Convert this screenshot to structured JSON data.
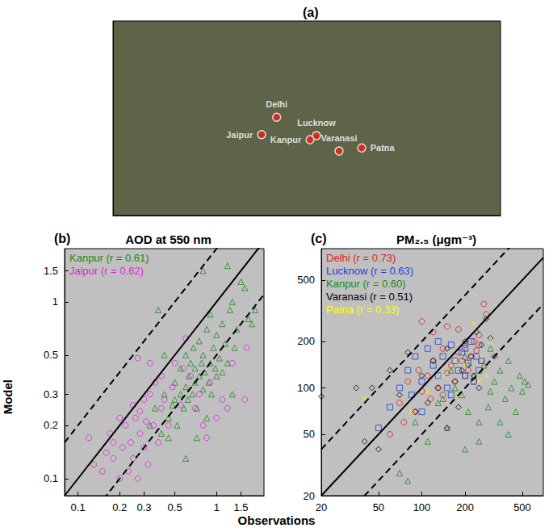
{
  "xlabel": "Observations",
  "ylabel": "Model",
  "chart_data": [
    {
      "type": "map",
      "panel": "(a)",
      "tick_labels": false,
      "color": "#e8201a",
      "xlim": [
        62,
        98
      ],
      "ylim": [
        19,
        38
      ],
      "labels": [
        "Delhi",
        "Jaipur",
        "Lucknow",
        "Kanpur",
        "Varanasi",
        "Patna"
      ],
      "x": [
        77.2,
        75.8,
        80.9,
        80.3,
        83.0,
        85.1
      ],
      "values": [
        28.6,
        26.9,
        26.8,
        26.4,
        25.3,
        25.6
      ]
    },
    {
      "type": "scatter",
      "panel": "(b)",
      "title": "AOD at 550 nm",
      "log": true,
      "legend": "upper left",
      "xlim": [
        0.08,
        2.2
      ],
      "ylim": [
        0.08,
        2.0
      ],
      "xticks": [
        0.1,
        0.2,
        0.3,
        0.5,
        1,
        1.5
      ],
      "yticks": [
        0.1,
        0.2,
        0.3,
        0.5,
        1,
        1.5
      ],
      "reference_lines": [
        {
          "ratio": 1,
          "line_style": "solid"
        },
        {
          "ratio": 2,
          "line_style": "dashed"
        },
        {
          "ratio": 0.5,
          "line_style": "dashed"
        }
      ],
      "series": [
        {
          "name": "Kanpur (r = 0.61)",
          "color": "#1a8a1a",
          "marker": "triangle",
          "x": [
            0.33,
            0.36,
            0.4,
            0.42,
            0.45,
            0.48,
            0.5,
            0.5,
            0.52,
            0.55,
            0.55,
            0.58,
            0.6,
            0.6,
            0.62,
            0.63,
            0.65,
            0.67,
            0.68,
            0.7,
            0.7,
            0.72,
            0.75,
            0.75,
            0.78,
            0.8,
            0.8,
            0.82,
            0.85,
            0.88,
            0.9,
            0.9,
            0.92,
            0.95,
            0.98,
            1.0,
            1.0,
            1.05,
            1.1,
            1.1,
            1.15,
            1.2,
            1.25,
            1.3,
            1.35,
            1.4,
            1.5,
            1.6,
            1.7,
            1.8,
            1.9,
            0.38,
            0.42,
            0.8,
            1.2,
            0.6,
            0.72,
            0.85,
            0.45,
            1.3
          ],
          "values": [
            0.2,
            0.25,
            0.18,
            0.3,
            0.22,
            0.26,
            0.28,
            0.35,
            0.2,
            0.3,
            0.42,
            0.25,
            0.33,
            0.5,
            0.28,
            0.38,
            0.45,
            0.3,
            0.55,
            0.35,
            0.42,
            0.25,
            0.38,
            0.6,
            0.45,
            0.32,
            0.5,
            0.4,
            0.7,
            0.35,
            0.45,
            0.85,
            0.3,
            0.55,
            0.42,
            0.65,
            0.38,
            0.48,
            0.75,
            0.4,
            0.58,
            0.45,
            0.9,
            1.0,
            0.55,
            0.7,
            1.3,
            1.2,
            0.8,
            0.75,
            0.9,
            0.9,
            0.5,
            1.5,
            1.6,
            0.13,
            0.17,
            0.22,
            0.17,
            0.3
          ]
        },
        {
          "name": "Jaipur (r = 0.62)",
          "color": "#e020e0",
          "marker": "circle",
          "x": [
            0.12,
            0.13,
            0.15,
            0.16,
            0.17,
            0.18,
            0.18,
            0.2,
            0.2,
            0.21,
            0.22,
            0.23,
            0.24,
            0.25,
            0.25,
            0.26,
            0.27,
            0.27,
            0.28,
            0.28,
            0.3,
            0.3,
            0.31,
            0.32,
            0.33,
            0.35,
            0.36,
            0.38,
            0.4,
            0.4,
            0.42,
            0.45,
            0.48,
            0.5,
            0.55,
            0.6,
            0.65,
            0.7,
            0.75,
            0.8,
            0.85,
            0.9,
            1.0,
            1.1,
            1.2,
            1.3,
            1.6,
            1.65,
            0.58,
            0.33
          ],
          "values": [
            0.17,
            0.12,
            0.11,
            0.14,
            0.18,
            0.13,
            0.16,
            0.1,
            0.22,
            0.15,
            0.2,
            0.11,
            0.16,
            0.26,
            0.13,
            0.22,
            0.48,
            0.1,
            0.18,
            0.24,
            0.15,
            0.28,
            0.21,
            0.12,
            0.3,
            0.2,
            0.35,
            0.16,
            0.25,
            0.38,
            0.28,
            0.2,
            0.33,
            0.45,
            0.26,
            0.62,
            0.38,
            0.25,
            0.3,
            0.2,
            0.17,
            0.35,
            0.22,
            0.28,
            0.25,
            0.45,
            0.28,
            0.55,
            0.42,
            0.45
          ]
        }
      ]
    },
    {
      "type": "scatter",
      "panel": "(c)",
      "title": "PM₂.₅ (μgm⁻³)",
      "log": true,
      "legend": "upper left",
      "xlim": [
        20,
        700
      ],
      "ylim": [
        20,
        800
      ],
      "xticks": [
        20,
        50,
        100,
        200,
        500
      ],
      "yticks": [
        20,
        50,
        100,
        200,
        500
      ],
      "reference_lines": [
        {
          "ratio": 1,
          "line_style": "solid"
        },
        {
          "ratio": 2,
          "line_style": "dashed"
        },
        {
          "ratio": 0.5,
          "line_style": "dashed"
        }
      ],
      "series": [
        {
          "name": "Delhi (r = 0.73)",
          "color": "#e41a1c",
          "marker": "circle",
          "x": [
            60,
            70,
            75,
            80,
            90,
            95,
            100,
            110,
            115,
            120,
            130,
            140,
            150,
            160,
            170,
            180,
            190,
            200,
            210,
            220,
            230,
            240,
            250,
            260,
            270,
            280,
            120,
            150,
            200,
            230,
            250,
            100,
            140,
            180
          ],
          "values": [
            50,
            80,
            60,
            110,
            70,
            130,
            95,
            120,
            85,
            150,
            100,
            180,
            125,
            140,
            110,
            170,
            150,
            190,
            130,
            160,
            200,
            175,
            220,
            150,
            350,
            300,
            230,
            250,
            120,
            110,
            190,
            270,
            90,
            240
          ]
        },
        {
          "name": "Lucknow (r = 0.63)",
          "color": "#1f3fe0",
          "marker": "square",
          "x": [
            50,
            60,
            70,
            80,
            85,
            90,
            100,
            110,
            120,
            130,
            140,
            150,
            160,
            170,
            180,
            190,
            200,
            210,
            220,
            230,
            240,
            250,
            260,
            100,
            130,
            160,
            200
          ],
          "values": [
            55,
            75,
            100,
            130,
            90,
            160,
            110,
            180,
            140,
            120,
            160,
            100,
            190,
            150,
            130,
            170,
            120,
            145,
            200,
            110,
            160,
            130,
            150,
            70,
            200,
            90,
            180
          ]
        },
        {
          "name": "Kanpur (r = 0.60)",
          "color": "#1a8a1a",
          "marker": "triangle",
          "x": [
            70,
            80,
            90,
            110,
            130,
            150,
            170,
            190,
            200,
            210,
            230,
            250,
            270,
            290,
            300,
            320,
            350,
            380,
            400,
            420,
            450,
            480,
            500,
            520,
            550,
            300,
            350,
            400,
            250,
            200,
            160,
            140
          ],
          "values": [
            28,
            25,
            60,
            45,
            80,
            55,
            100,
            90,
            40,
            70,
            120,
            60,
            140,
            75,
            95,
            110,
            130,
            85,
            150,
            100,
            70,
            120,
            95,
            110,
            105,
            180,
            60,
            50,
            45,
            160,
            130,
            85
          ]
        },
        {
          "name": "Varanasi (r = 0.51)",
          "color": "#000000",
          "marker": "diamond",
          "x": [
            20,
            35,
            40,
            45,
            50,
            60,
            70,
            80,
            90,
            100,
            110,
            120,
            130,
            150,
            170,
            190,
            200,
            210,
            220,
            240,
            260,
            280,
            300,
            320,
            150,
            180,
            230,
            250
          ],
          "values": [
            88,
            100,
            45,
            100,
            40,
            130,
            90,
            170,
            70,
            120,
            80,
            150,
            100,
            180,
            110,
            130,
            200,
            140,
            160,
            230,
            190,
            280,
            210,
            160,
            55,
            75,
            120,
            100
          ]
        },
        {
          "name": "Patna (r = 0.33)",
          "color": "#ffff00",
          "marker": "x",
          "x": [
            40,
            85,
            110,
            140,
            170,
            200,
            230,
            260,
            280,
            300,
            180,
            250
          ],
          "values": [
            85,
            70,
            95,
            120,
            150,
            140,
            260,
            160,
            120,
            200,
            90,
            110
          ]
        }
      ]
    }
  ]
}
